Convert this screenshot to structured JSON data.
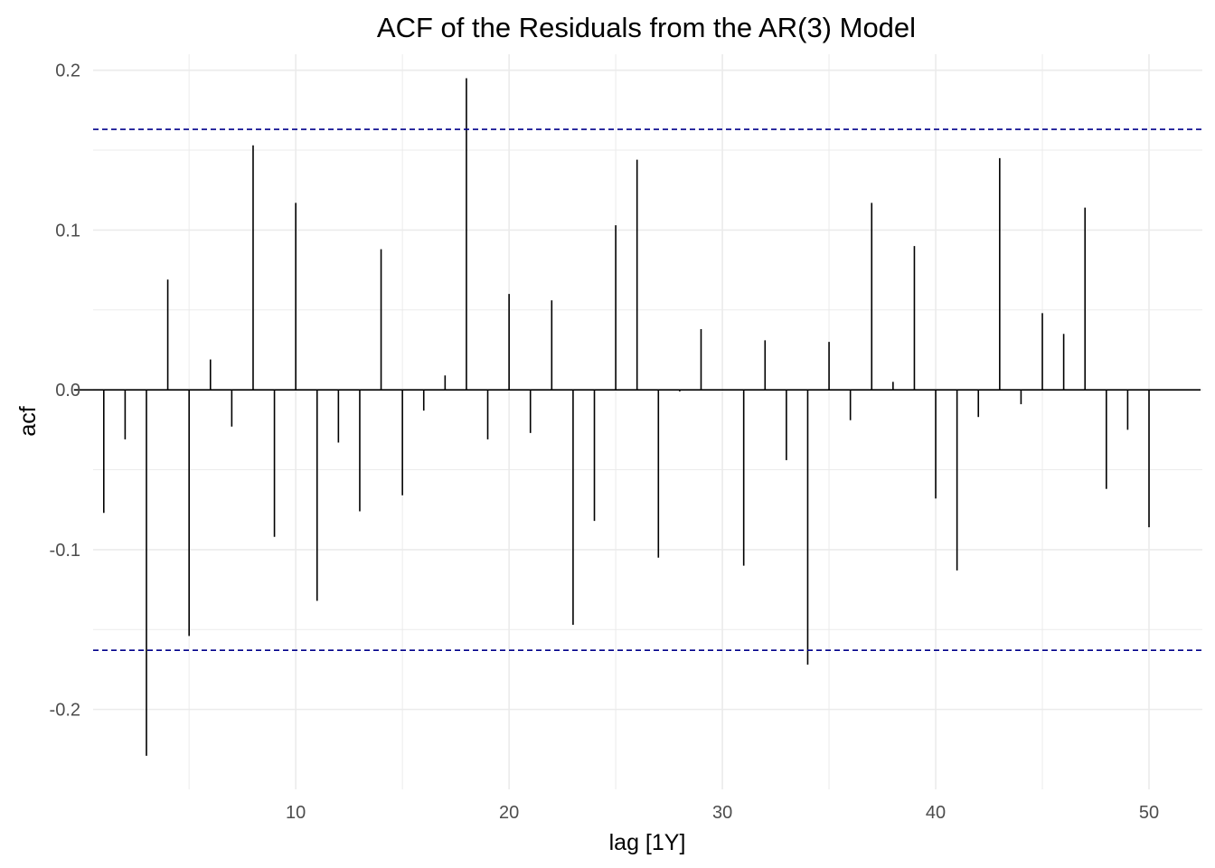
{
  "chart_data": {
    "type": "bar",
    "title": "ACF of the Residuals from the AR(3) Model",
    "xlabel": "lag [1Y]",
    "ylabel": "acf",
    "xlim": [
      0.5,
      52.5
    ],
    "ylim": [
      -0.25,
      0.21
    ],
    "x_ticks": [
      10,
      20,
      30,
      40,
      50
    ],
    "y_ticks": [
      0.2,
      0.1,
      0.0,
      -0.1,
      -0.2
    ],
    "y_tick_labels": [
      "0.2",
      "0.1",
      "0.0",
      "-0.1",
      "-0.2"
    ],
    "x_tick_labels": [
      "10",
      "20",
      "30",
      "40",
      "50"
    ],
    "grid": true,
    "confidence_bound": 0.163,
    "lags": [
      1,
      2,
      3,
      4,
      5,
      6,
      7,
      8,
      9,
      10,
      11,
      12,
      13,
      14,
      15,
      16,
      17,
      18,
      19,
      20,
      21,
      22,
      23,
      24,
      25,
      26,
      27,
      28,
      29,
      30,
      31,
      32,
      33,
      34,
      35,
      36,
      37,
      38,
      39,
      40,
      41,
      42,
      43,
      44,
      45,
      46,
      47,
      48,
      49,
      50
    ],
    "values": [
      -0.077,
      -0.031,
      -0.229,
      0.069,
      -0.154,
      0.019,
      -0.023,
      0.153,
      -0.092,
      0.117,
      -0.132,
      -0.033,
      -0.076,
      0.088,
      -0.066,
      -0.013,
      0.009,
      0.195,
      -0.031,
      0.06,
      -0.027,
      0.056,
      -0.147,
      -0.082,
      0.103,
      0.144,
      -0.105,
      -0.001,
      0.038,
      0.0,
      -0.11,
      0.031,
      -0.044,
      -0.172,
      0.03,
      -0.019,
      0.117,
      0.005,
      0.09,
      -0.068,
      -0.113,
      -0.017,
      0.145,
      -0.009,
      0.048,
      0.035,
      0.114,
      -0.062,
      -0.025,
      -0.086
    ],
    "colors": {
      "bars": "#000000",
      "bounds": "#00008B",
      "grid": "#EBEBEB"
    }
  }
}
